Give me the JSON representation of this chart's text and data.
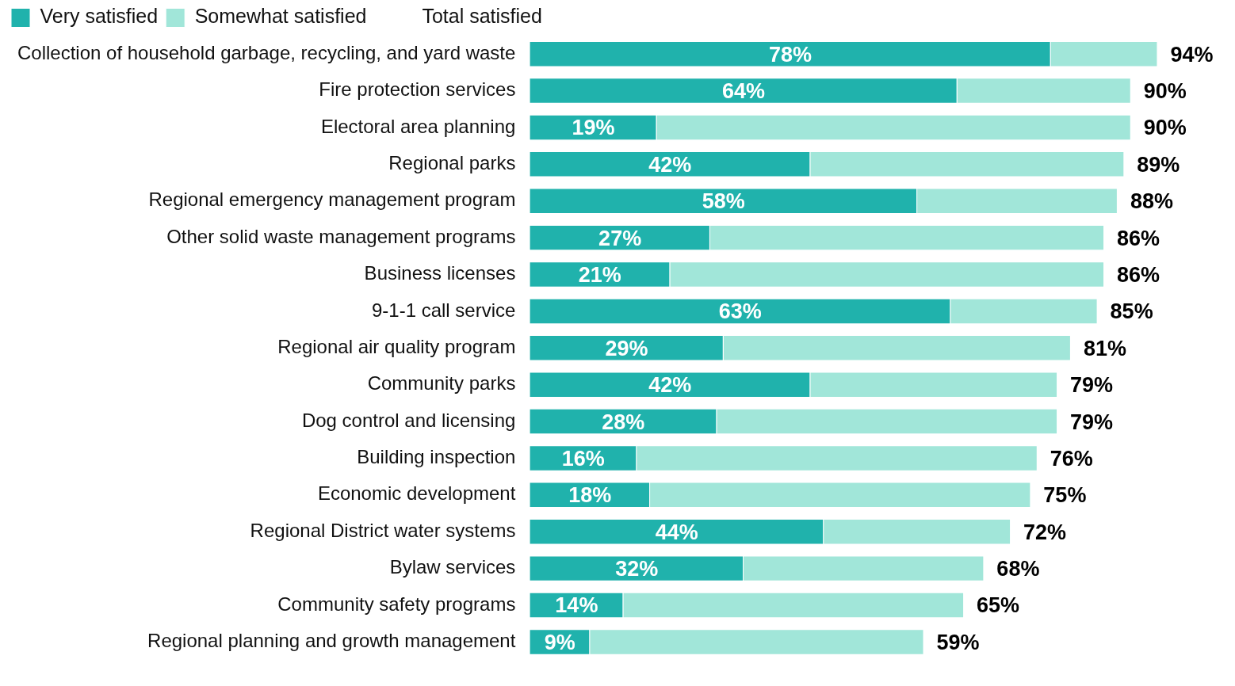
{
  "chart_data": {
    "type": "bar",
    "orientation": "horizontal",
    "stacked": true,
    "legend": "top left",
    "grid": false,
    "tick_labels": "y",
    "categories": [
      "Collection of household garbage, recycling, and yard waste",
      "Fire protection services",
      "Electoral area planning",
      "Regional parks",
      "Regional emergency management program",
      "Other solid waste management programs",
      "Business licenses",
      "9-1-1 call service",
      "Regional air quality program",
      "Community parks",
      "Dog control and licensing",
      "Building inspection",
      "Economic development",
      "Regional District water systems",
      "Bylaw services",
      "Community safety programs",
      "Regional planning and growth management"
    ],
    "series": [
      {
        "name": "Very satisfied",
        "color": "#20b2ac",
        "values": [
          78,
          64,
          19,
          42,
          58,
          27,
          21,
          63,
          29,
          42,
          28,
          16,
          18,
          44,
          32,
          14,
          9
        ],
        "value_labels": [
          "78%",
          "64%",
          "19%",
          "42%",
          "58%",
          "27%",
          "21%",
          "63%",
          "29%",
          "42%",
          "28%",
          "16%",
          "18%",
          "44%",
          "32%",
          "14%",
          "9%"
        ]
      },
      {
        "name": "Somewhat satisfied",
        "color": "#a1e6d9",
        "values": [
          16,
          26,
          71,
          47,
          30,
          59,
          65,
          22,
          52,
          37,
          51,
          60,
          57,
          28,
          36,
          51,
          50
        ]
      }
    ],
    "totals": [
      "94%",
      "90%",
      "90%",
      "89%",
      "88%",
      "86%",
      "86%",
      "85%",
      "81%",
      "79%",
      "79%",
      "76%",
      "75%",
      "72%",
      "68%",
      "65%",
      "59%"
    ],
    "annotations": [
      "Total satisfied"
    ]
  }
}
